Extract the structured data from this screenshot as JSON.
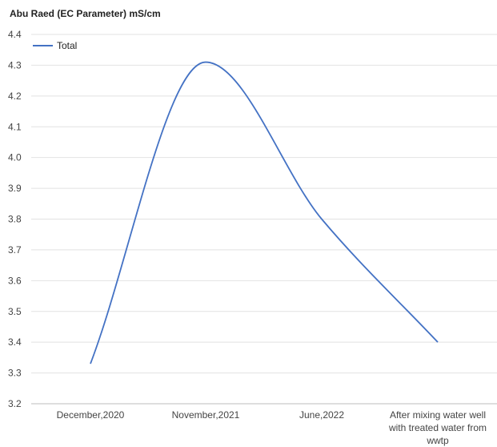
{
  "chart_data": {
    "type": "line",
    "title": "Abu Raed (EC Parameter) mS/cm",
    "categories": [
      [
        "December,2020"
      ],
      [
        "November,2021"
      ],
      [
        "June,2022"
      ],
      [
        "After mixing water well",
        "with treated water from",
        "wwtp"
      ]
    ],
    "series": [
      {
        "name": "Total",
        "values": [
          3.33,
          4.31,
          3.8,
          3.4
        ],
        "color": "#4472c4"
      }
    ],
    "ylim": [
      3.2,
      4.4
    ],
    "yticks": [
      "3.2",
      "3.3",
      "3.4",
      "3.5",
      "3.6",
      "3.7",
      "3.8",
      "3.9",
      "4.0",
      "4.1",
      "4.2",
      "4.3",
      "4.4"
    ],
    "grid": true,
    "legend_position": "top-left",
    "smooth": true
  }
}
